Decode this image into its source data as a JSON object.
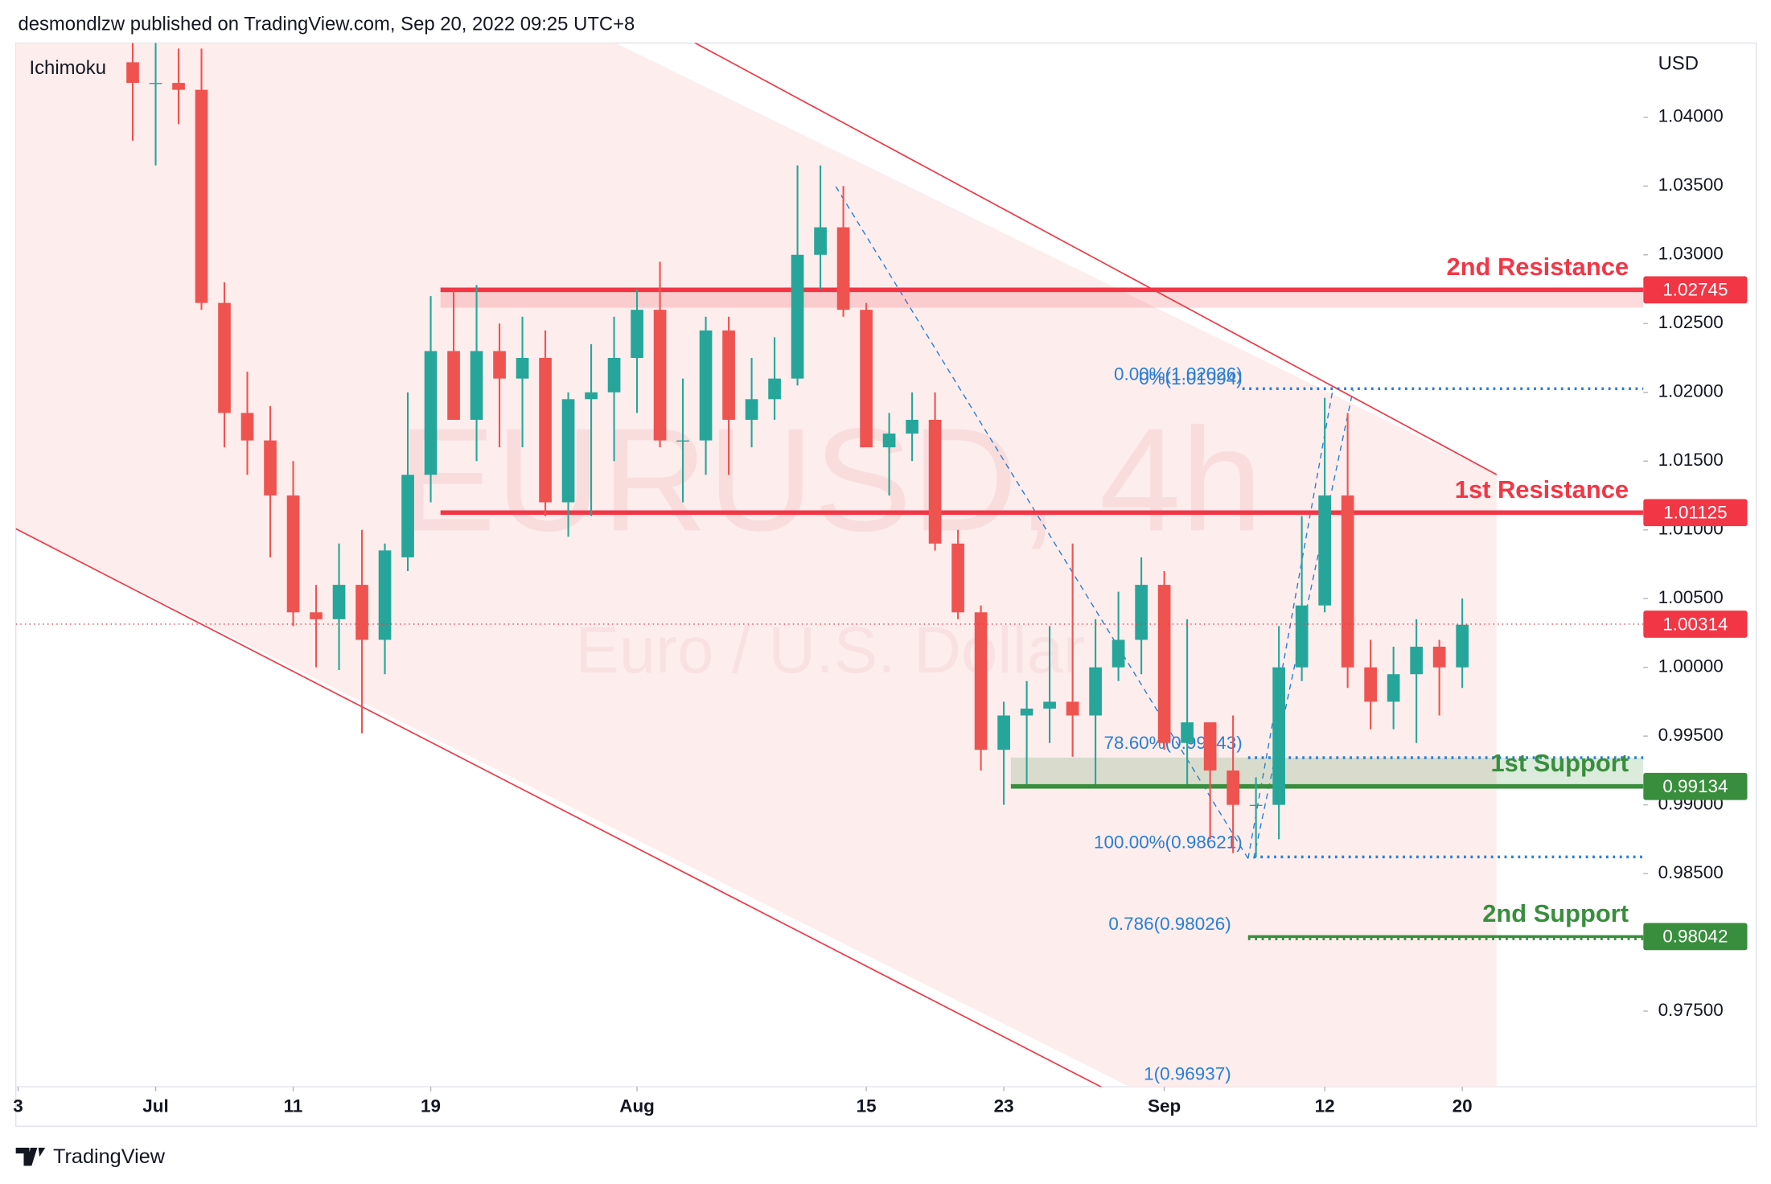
{
  "chart_data": {
    "type": "candlestick",
    "header": "desmondlzw published on TradingView.com, Sep 20, 2022 09:25 UTC+8",
    "indicator": "Ichimoku",
    "currency": "USD",
    "watermark": "EURUSD, 4h",
    "watermark_sub": "Euro / U.S. Dollar",
    "footer": "TradingView",
    "up_color": "#26a69a",
    "down_color": "#ef5350",
    "xlim": [
      -5.1,
      65.9
    ],
    "ylim": [
      0.9695,
      1.0454
    ],
    "xticks": [
      {
        "value": -5,
        "label": "3"
      },
      {
        "value": 1,
        "label": "Jul"
      },
      {
        "value": 7,
        "label": "11"
      },
      {
        "value": 13,
        "label": "19"
      },
      {
        "value": 22,
        "label": "Aug"
      },
      {
        "value": 32,
        "label": "15"
      },
      {
        "value": 38,
        "label": "23"
      },
      {
        "value": 45,
        "label": "Sep"
      },
      {
        "value": 52,
        "label": "12"
      },
      {
        "value": 58,
        "label": "20"
      }
    ],
    "yticks": [
      {
        "value": 1.04,
        "label": "1.04000"
      },
      {
        "value": 1.035,
        "label": "1.03500"
      },
      {
        "value": 1.03,
        "label": "1.03000"
      },
      {
        "value": 1.025,
        "label": "1.02500"
      },
      {
        "value": 1.02,
        "label": "1.02000"
      },
      {
        "value": 1.015,
        "label": "1.01500"
      },
      {
        "value": 1.01,
        "label": "1.01000"
      },
      {
        "value": 1.005,
        "label": "1.00500"
      },
      {
        "value": 1,
        "label": "1.00000"
      },
      {
        "value": 0.995,
        "label": "0.99500"
      },
      {
        "value": 0.99,
        "label": "0.99000"
      },
      {
        "value": 0.985,
        "label": "0.98500"
      },
      {
        "value": 0.975,
        "label": "0.97500"
      }
    ],
    "x": [
      0,
      1,
      2,
      3,
      4,
      5,
      6,
      7,
      8,
      9,
      10,
      11,
      12,
      13,
      14,
      15,
      16,
      17,
      18,
      19,
      20,
      21,
      22,
      23,
      24,
      25,
      26,
      27,
      28,
      29,
      30,
      31,
      32,
      33,
      34,
      35,
      36,
      37,
      38,
      39,
      40,
      41,
      42,
      43,
      44,
      45,
      46,
      47,
      48,
      49,
      50,
      51,
      52,
      53,
      54,
      55,
      56,
      57,
      58
    ],
    "open": [
      1.044,
      1.0425,
      1.0425,
      1.042,
      1.0265,
      1.0185,
      1.0165,
      1.0125,
      1.004,
      1.0035,
      1.006,
      1.002,
      1.008,
      1.014,
      1.023,
      1.018,
      1.023,
      1.021,
      1.0225,
      1.012,
      1.0195,
      1.02,
      1.0225,
      1.026,
      1.0165,
      1.0165,
      1.0245,
      1.018,
      1.0195,
      1.021,
      1.03,
      1.032,
      1.026,
      1.016,
      1.017,
      1.018,
      1.009,
      1.004,
      0.994,
      0.9965,
      0.997,
      0.9975,
      0.9965,
      1,
      1.002,
      1.006,
      0.9945,
      0.996,
      0.9925,
      0.99,
      0.99,
      1,
      1.0045,
      1.0125,
      1,
      0.9975,
      0.9995,
      1.0015,
      1
    ],
    "high": [
      1.0454,
      1.0454,
      1.045,
      1.045,
      1.028,
      1.0215,
      1.019,
      1.015,
      1.006,
      1.009,
      1.01,
      1.009,
      1.02,
      1.027,
      1.0275,
      1.0278,
      1.025,
      1.0255,
      1.0245,
      1.02,
      1.0235,
      1.0255,
      1.0275,
      1.0295,
      1.021,
      1.0255,
      1.0255,
      1.0225,
      1.024,
      1.0365,
      1.0365,
      1.035,
      1.0265,
      1.0185,
      1.02,
      1.02,
      1.01,
      1.0045,
      0.9975,
      0.999,
      1.003,
      1.009,
      1.0035,
      1.0055,
      1.008,
      1.007,
      1.0035,
      0.996,
      0.9965,
      0.992,
      1.003,
      1.011,
      1.0196,
      1.0185,
      1.002,
      1.0015,
      1.0035,
      1.002,
      1.005
    ],
    "low": [
      1.0383,
      1.0365,
      1.0395,
      1.026,
      1.016,
      1.014,
      1.008,
      1.003,
      1,
      0.9998,
      0.9952,
      0.9995,
      1.007,
      1.012,
      1.018,
      1.015,
      1.016,
      1.016,
      1.011,
      1.0095,
      1.011,
      1.015,
      1.0185,
      1.016,
      1.012,
      1.014,
      1.014,
      1.016,
      1.018,
      1.0205,
      1.0275,
      1.0255,
      1.016,
      1.0125,
      1.015,
      1.0085,
      1.0035,
      0.9925,
      0.99,
      0.9915,
      0.9945,
      0.9935,
      0.9915,
      0.999,
      0.9995,
      0.994,
      0.9915,
      0.9875,
      0.9865,
      0.9862,
      0.9875,
      0.999,
      1.004,
      0.9985,
      0.9955,
      0.9955,
      0.9945,
      0.9965,
      0.9985
    ],
    "close": [
      1.0425,
      1.0425,
      1.042,
      1.0265,
      1.0185,
      1.0165,
      1.0125,
      1.004,
      1.0035,
      1.006,
      1.002,
      1.0085,
      1.014,
      1.023,
      1.018,
      1.023,
      1.021,
      1.0225,
      1.012,
      1.0195,
      1.02,
      1.0225,
      1.026,
      1.0165,
      1.0165,
      1.0245,
      1.018,
      1.0195,
      1.021,
      1.03,
      1.032,
      1.026,
      1.016,
      1.017,
      1.018,
      1.009,
      1.004,
      0.994,
      0.9965,
      0.997,
      0.9975,
      0.9965,
      1,
      1.002,
      1.006,
      0.9945,
      0.996,
      0.9925,
      0.99,
      0.99,
      1,
      1.0045,
      1.0125,
      1,
      0.9975,
      0.9995,
      1.0015,
      1,
      1.0031
    ],
    "last_price": 1.00314,
    "last_color": "#f23645",
    "levels": [
      {
        "label": "2nd Resistance",
        "value": 1.02745,
        "color": "#f23645"
      },
      {
        "label": "1st Resistance",
        "value": 1.01125,
        "color": "#f23645"
      },
      {
        "label": "1st Support",
        "value": 0.99134,
        "color": "#388e3c"
      },
      {
        "label": "2nd Support",
        "value": 0.98042,
        "color": "#388e3c"
      }
    ],
    "fib": [
      {
        "label": "0.00%(1.02026)",
        "value": 1.02026
      },
      {
        "label": "0%(1.01994)",
        "value": 1.01994
      },
      {
        "label": "78.60%(0.99343)",
        "value": 0.99343
      },
      {
        "label": "100.00%(0.98621)",
        "value": 0.98621
      },
      {
        "label": "0.786(0.98026)",
        "value": 0.98026
      },
      {
        "label": "1(0.96937)",
        "value": 0.96937
      }
    ]
  }
}
